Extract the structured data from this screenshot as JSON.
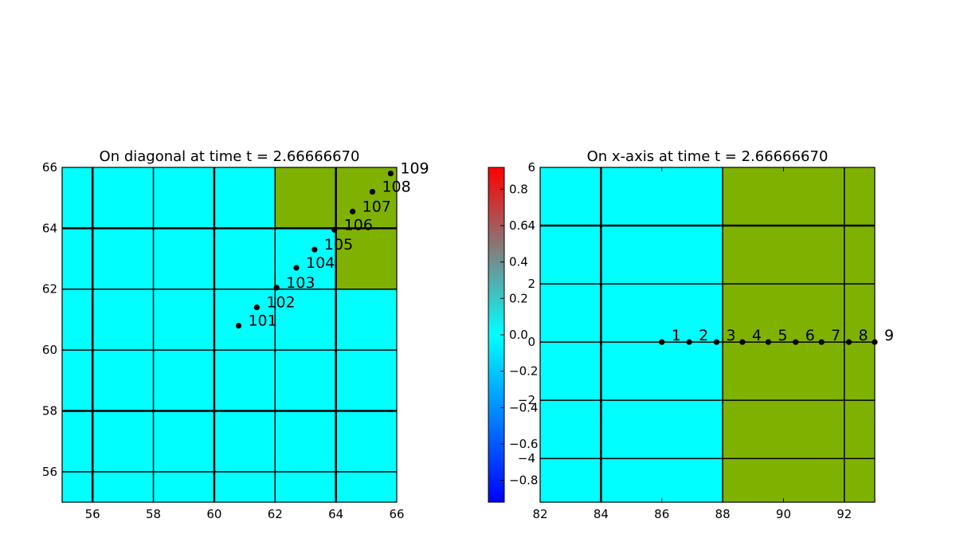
{
  "colors": {
    "cyan": "#00ffff",
    "olive": "#7fb200",
    "grid": "#000000",
    "point": "#000000",
    "colorbar_stops": [
      "#0000ff",
      "#0099ff",
      "#00ffff",
      "#808080",
      "#ff0000"
    ]
  },
  "chart_data": [
    {
      "type": "scatter",
      "title": "On diagonal at time t =      2.66666670",
      "xlim": [
        55,
        66
      ],
      "ylim": [
        55,
        66
      ],
      "xticks": [
        "56",
        "58",
        "60",
        "62",
        "64",
        "66"
      ],
      "yticks": [
        "56",
        "58",
        "60",
        "62",
        "64",
        "66"
      ],
      "cells": [
        {
          "x": [
            55,
            64
          ],
          "y": [
            55,
            66
          ],
          "value": "cyan"
        },
        {
          "x": [
            64,
            66
          ],
          "y": [
            55,
            62
          ],
          "value": "cyan"
        },
        {
          "x": [
            62,
            64
          ],
          "y": [
            64,
            66
          ],
          "value": "olive"
        },
        {
          "x": [
            64,
            66
          ],
          "y": [
            62,
            66
          ],
          "value": "olive"
        }
      ],
      "grid_x": [
        56,
        58,
        60,
        62,
        64
      ],
      "grid_y": [
        56,
        58,
        60,
        62,
        64
      ],
      "points": [
        {
          "label": "101",
          "x": 60.8,
          "y": 60.8
        },
        {
          "label": "102",
          "x": 61.4,
          "y": 61.4
        },
        {
          "label": "103",
          "x": 62.05,
          "y": 62.05
        },
        {
          "label": "104",
          "x": 62.7,
          "y": 62.7
        },
        {
          "label": "105",
          "x": 63.3,
          "y": 63.3
        },
        {
          "label": "106",
          "x": 63.95,
          "y": 63.95
        },
        {
          "label": "107",
          "x": 64.55,
          "y": 64.55
        },
        {
          "label": "108",
          "x": 65.2,
          "y": 65.2
        },
        {
          "label": "109",
          "x": 65.8,
          "y": 65.8
        }
      ]
    },
    {
      "type": "scatter",
      "title": "On x-axis at time t =      2.66666670",
      "xlim": [
        82,
        93
      ],
      "ylim": [
        -5.5,
        6
      ],
      "xticks": [
        "82",
        "84",
        "86",
        "88",
        "90",
        "92"
      ],
      "yticks": [
        "−4",
        "−2",
        "0",
        "2",
        "4",
        "6"
      ],
      "cells": [
        {
          "x": [
            82,
            88
          ],
          "y": [
            -5.5,
            6
          ],
          "value": "cyan"
        },
        {
          "x": [
            88,
            93
          ],
          "y": [
            -5.5,
            6
          ],
          "value": "olive"
        }
      ],
      "grid_x": [
        84,
        88,
        92
      ],
      "grid_y": [
        -4,
        -2,
        0,
        2,
        4
      ],
      "points": [
        {
          "label": "1",
          "x": 86.0,
          "y": 0
        },
        {
          "label": "2",
          "x": 86.9,
          "y": 0
        },
        {
          "label": "3",
          "x": 87.8,
          "y": 0
        },
        {
          "label": "4",
          "x": 88.65,
          "y": 0
        },
        {
          "label": "5",
          "x": 89.5,
          "y": 0
        },
        {
          "label": "6",
          "x": 90.4,
          "y": 0
        },
        {
          "label": "7",
          "x": 91.25,
          "y": 0
        },
        {
          "label": "8",
          "x": 92.15,
          "y": 0
        },
        {
          "label": "9",
          "x": 93.0,
          "y": 0
        }
      ]
    }
  ],
  "colorbar": {
    "range": [
      -0.92,
      0.92
    ],
    "ticks": [
      "0.8",
      "0.6",
      "0.4",
      "0.2",
      "0.0",
      "−0.2",
      "−0.4",
      "−0.6",
      "−0.8"
    ]
  }
}
